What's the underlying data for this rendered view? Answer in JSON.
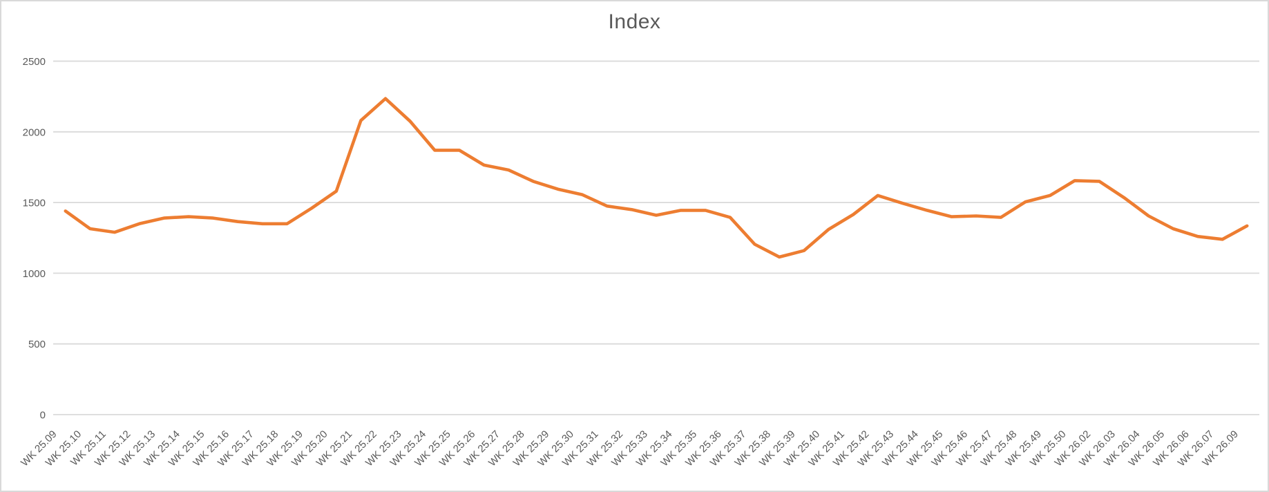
{
  "chart_data": {
    "type": "line",
    "title": "Index",
    "xlabel": "",
    "ylabel": "",
    "ylim": [
      0,
      2500
    ],
    "yticks": [
      0,
      500,
      1000,
      1500,
      2000,
      2500
    ],
    "grid": "horizontal",
    "legend": "none",
    "x_label_rotation": -45,
    "categories": [
      "WK 25.09",
      "WK 25.10",
      "WK 25.11",
      "WK 25.12",
      "WK 25.13",
      "WK 25.14",
      "WK 25.15",
      "WK 25.16",
      "WK 25.17",
      "WK 25.18",
      "WK 25.19",
      "WK 25.20",
      "WK 25.21",
      "WK 25.22",
      "WK 25.23",
      "WK 25.24",
      "WK 25.25",
      "WK 25.26",
      "WK 25.27",
      "WK 25.28",
      "WK 25.29",
      "WK 25.30",
      "WK 25.31",
      "WK 25.32",
      "WK 25.33",
      "WK 25.34",
      "WK 25.35",
      "WK 25.36",
      "WK 25.37",
      "WK 25.38",
      "WK 25.39",
      "WK 25.40",
      "WK 25.41",
      "WK 25.42",
      "WK 25.43",
      "WK 25.44",
      "WK 25.45",
      "WK 25.46",
      "WK 25.47",
      "WK 25.48",
      "WK 25.49",
      "WK 25.50",
      "WK 26.02",
      "WK 26.03",
      "WK 26.04",
      "WK 26.05",
      "WK 26.06",
      "WK 26.07",
      "WK 26.09"
    ],
    "series": [
      {
        "name": "Index",
        "color": "#ED7D31",
        "values": [
          1440,
          1315,
          1290,
          1350,
          1390,
          1400,
          1390,
          1365,
          1350,
          1350,
          1460,
          1580,
          2080,
          2235,
          2075,
          1870,
          1870,
          1765,
          1730,
          1650,
          1595,
          1555,
          1475,
          1450,
          1410,
          1445,
          1445,
          1395,
          1205,
          1115,
          1160,
          1310,
          1415,
          1550,
          1495,
          1445,
          1400,
          1405,
          1395,
          1505,
          1550,
          1655,
          1650,
          1535,
          1405,
          1315,
          1260,
          1240,
          1335
        ]
      }
    ],
    "colors": {
      "gridline": "#d9d9d9",
      "axis_text": "#595959",
      "title_text": "#595959",
      "chart_border": "#d9d9d9",
      "background": "#ffffff"
    }
  }
}
